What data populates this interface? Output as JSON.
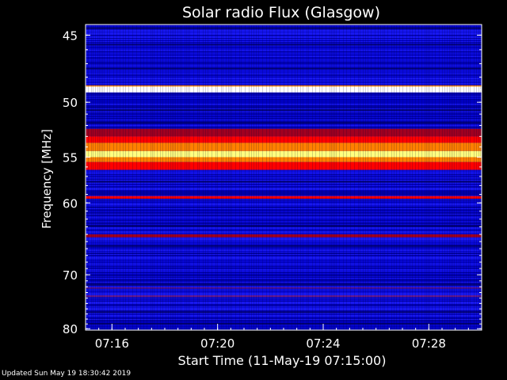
{
  "footer": {
    "updated": "Updated Sun May 19 18:30:42 2019"
  },
  "chart_data": {
    "type": "heatmap",
    "title": "Solar radio Flux (Glasgow)",
    "xlabel": "Start Time (11-May-19 07:15:00)",
    "ylabel": "Frequency [MHz]",
    "x_ticks": [
      "07:16",
      "07:20",
      "07:24",
      "07:28"
    ],
    "x_tick_minutes": [
      1,
      5,
      9,
      13
    ],
    "x_range_minutes": [
      0,
      15
    ],
    "y_ticks": [
      45,
      50,
      55,
      60,
      70,
      80
    ],
    "y_range": [
      44.3,
      80.3
    ],
    "y_scale": "reciprocal",
    "colormap": [
      "#000040",
      "#0000c8",
      "#2020ff",
      "#6a1a90",
      "#a00020",
      "#ff0000",
      "#ff8000",
      "#ffff80",
      "#ffffff"
    ],
    "bands": [
      {
        "mhz_min": 48.7,
        "mhz_max": 49.2,
        "level": 8
      },
      {
        "mhz_min": 52.3,
        "mhz_max": 53.0,
        "level": 4
      },
      {
        "mhz_min": 53.0,
        "mhz_max": 53.6,
        "level": 5
      },
      {
        "mhz_min": 53.6,
        "mhz_max": 54.4,
        "level": 6
      },
      {
        "mhz_min": 54.4,
        "mhz_max": 55.0,
        "level": 7
      },
      {
        "mhz_min": 55.0,
        "mhz_max": 55.5,
        "level": 6
      },
      {
        "mhz_min": 55.5,
        "mhz_max": 56.3,
        "level": 5
      },
      {
        "mhz_min": 59.2,
        "mhz_max": 59.5,
        "level": 5
      },
      {
        "mhz_min": 64.0,
        "mhz_max": 64.4,
        "level": 4
      },
      {
        "mhz_min": 72.1,
        "mhz_max": 72.3,
        "level": 3
      },
      {
        "mhz_min": 73.5,
        "mhz_max": 73.8,
        "level": 3
      }
    ]
  }
}
